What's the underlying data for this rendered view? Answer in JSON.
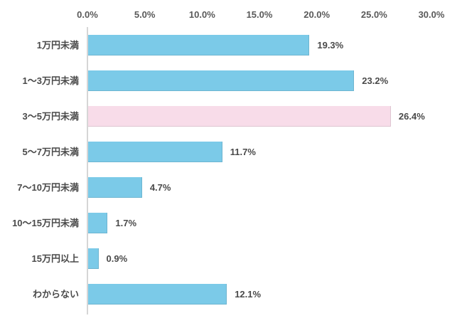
{
  "chart_data": {
    "type": "bar",
    "orientation": "horizontal",
    "categories": [
      "1万円未満",
      "1〜3万円未満",
      "3〜5万円未満",
      "5〜7万円未満",
      "7〜10万円未満",
      "10〜15万円未満",
      "15万円以上",
      "わからない"
    ],
    "values": [
      19.3,
      23.2,
      26.4,
      11.7,
      4.7,
      1.7,
      0.9,
      12.1
    ],
    "value_labels": [
      "19.3%",
      "23.2%",
      "26.4%",
      "11.7%",
      "4.7%",
      "1.7%",
      "0.9%",
      "12.1%"
    ],
    "highlight_index": 2,
    "x_axis": {
      "position": "top",
      "min": 0,
      "max": 30,
      "tick_labels": [
        "0.0%",
        "5.0%",
        "10.0%",
        "15.0%",
        "20.0%",
        "25.0%",
        "30.0%"
      ]
    },
    "grid": false,
    "legend": false,
    "colors": {
      "bar": "#7BCAE8",
      "bar_highlight": "#F8DCE9",
      "axis_line": "#D6D6D6",
      "label_text": "#4A4A4A",
      "tick_text": "#595959",
      "background": "#FFFFFF"
    }
  }
}
